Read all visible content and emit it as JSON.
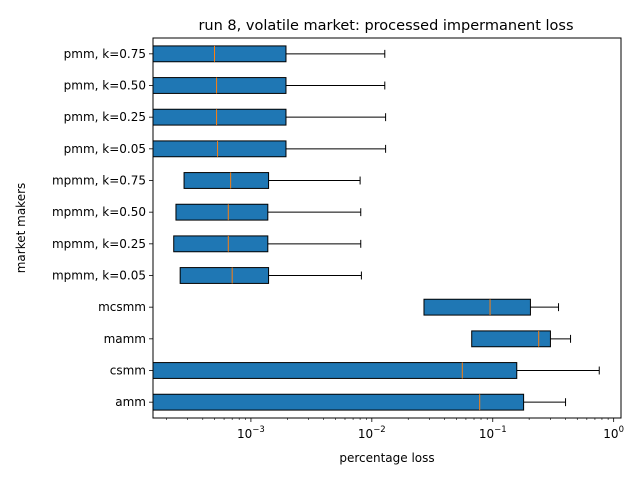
{
  "chart_data": {
    "type": "box",
    "orientation": "horizontal",
    "title": "run 8, volatile market: processed impermanent loss",
    "xlabel": "percentage loss",
    "ylabel": "market makers",
    "x_scale": "log",
    "xlim": [
      0.000155,
      1.15
    ],
    "x_ticks": [
      {
        "value": 0.001,
        "base": "10",
        "exp": "−3"
      },
      {
        "value": 0.01,
        "base": "10",
        "exp": "−2"
      },
      {
        "value": 0.1,
        "base": "10",
        "exp": "−1"
      },
      {
        "value": 1,
        "base": "10",
        "exp": "0"
      }
    ],
    "box_color": "#1f77b4",
    "median_color": "#ff7f0e",
    "series": [
      {
        "label": "pmm, k=0.75",
        "q1": 0.000155,
        "median": 0.0005,
        "q3": 0.00195,
        "whisker_low": 0.000155,
        "whisker_high": 0.0128
      },
      {
        "label": "pmm, k=0.50",
        "q1": 0.000155,
        "median": 0.00052,
        "q3": 0.00195,
        "whisker_low": 0.000155,
        "whisker_high": 0.0128
      },
      {
        "label": "pmm, k=0.25",
        "q1": 0.000155,
        "median": 0.00052,
        "q3": 0.00195,
        "whisker_low": 0.000155,
        "whisker_high": 0.013
      },
      {
        "label": "pmm, k=0.05",
        "q1": 0.000155,
        "median": 0.00053,
        "q3": 0.00195,
        "whisker_low": 0.000155,
        "whisker_high": 0.013
      },
      {
        "label": "mpmm, k=0.75",
        "q1": 0.00028,
        "median": 0.00068,
        "q3": 0.0014,
        "whisker_low": 0.00028,
        "whisker_high": 0.008
      },
      {
        "label": "mpmm, k=0.50",
        "q1": 0.00024,
        "median": 0.00065,
        "q3": 0.00138,
        "whisker_low": 0.00024,
        "whisker_high": 0.0081
      },
      {
        "label": "mpmm, k=0.25",
        "q1": 0.00023,
        "median": 0.00065,
        "q3": 0.00138,
        "whisker_low": 0.00023,
        "whisker_high": 0.0081
      },
      {
        "label": "mpmm, k=0.05",
        "q1": 0.00026,
        "median": 0.0007,
        "q3": 0.0014,
        "whisker_low": 0.00026,
        "whisker_high": 0.0082
      },
      {
        "label": "mcsmm",
        "q1": 0.027,
        "median": 0.095,
        "q3": 0.205,
        "whisker_low": 0.027,
        "whisker_high": 0.35
      },
      {
        "label": "mamm",
        "q1": 0.067,
        "median": 0.24,
        "q3": 0.3,
        "whisker_low": 0.067,
        "whisker_high": 0.44
      },
      {
        "label": "csmm",
        "q1": 0.000155,
        "median": 0.056,
        "q3": 0.158,
        "whisker_low": 0.000155,
        "whisker_high": 0.76
      },
      {
        "label": "amm",
        "q1": 0.000155,
        "median": 0.078,
        "q3": 0.18,
        "whisker_low": 0.000155,
        "whisker_high": 0.4
      }
    ]
  }
}
